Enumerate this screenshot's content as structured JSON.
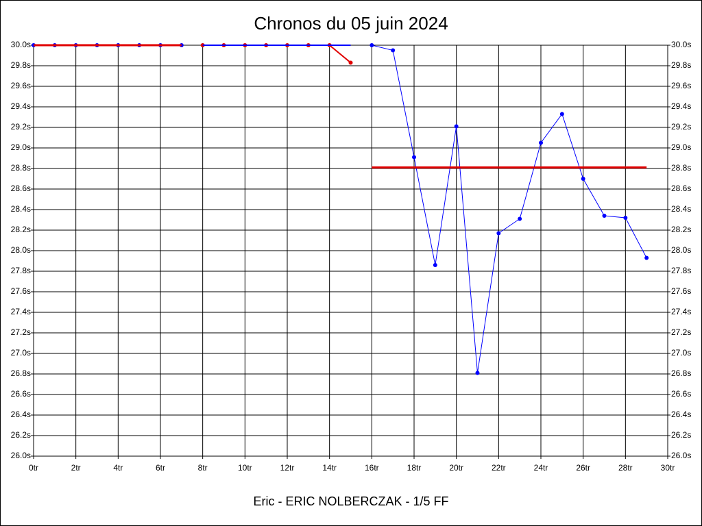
{
  "chart_data": {
    "type": "line",
    "title": "Chronos du 05 juin 2024",
    "subtitle": "Eric - ERIC NOLBERCZAK - 1/5 FF",
    "grid": true,
    "xlim": [
      0,
      30
    ],
    "xticks": [
      {
        "value": 0,
        "label": "0tr"
      },
      {
        "value": 2,
        "label": "2tr"
      },
      {
        "value": 4,
        "label": "4tr"
      },
      {
        "value": 6,
        "label": "6tr"
      },
      {
        "value": 8,
        "label": "8tr"
      },
      {
        "value": 10,
        "label": "10tr"
      },
      {
        "value": 12,
        "label": "12tr"
      },
      {
        "value": 14,
        "label": "14tr"
      },
      {
        "value": 16,
        "label": "16tr"
      },
      {
        "value": 18,
        "label": "18tr"
      },
      {
        "value": 20,
        "label": "20tr"
      },
      {
        "value": 22,
        "label": "22tr"
      },
      {
        "value": 24,
        "label": "24tr"
      },
      {
        "value": 26,
        "label": "26tr"
      },
      {
        "value": 28,
        "label": "28tr"
      },
      {
        "value": 30,
        "label": "30tr"
      }
    ],
    "ylim": [
      26,
      30
    ],
    "yticks": [
      {
        "value": 26,
        "label": "26.0s"
      },
      {
        "value": 26.2,
        "label": "26.2s"
      },
      {
        "value": 26.4,
        "label": "26.4s"
      },
      {
        "value": 26.6,
        "label": "26.6s"
      },
      {
        "value": 26.8,
        "label": "26.8s"
      },
      {
        "value": 27,
        "label": "27.0s"
      },
      {
        "value": 27.2,
        "label": "27.2s"
      },
      {
        "value": 27.4,
        "label": "27.4s"
      },
      {
        "value": 27.6,
        "label": "27.6s"
      },
      {
        "value": 27.8,
        "label": "27.8s"
      },
      {
        "value": 28,
        "label": "28.0s"
      },
      {
        "value": 28.2,
        "label": "28.2s"
      },
      {
        "value": 28.4,
        "label": "28.4s"
      },
      {
        "value": 28.6,
        "label": "28.6s"
      },
      {
        "value": 28.8,
        "label": "28.8s"
      },
      {
        "value": 29,
        "label": "29.0s"
      },
      {
        "value": 29.2,
        "label": "29.2s"
      },
      {
        "value": 29.4,
        "label": "29.4s"
      },
      {
        "value": 29.6,
        "label": "29.6s"
      },
      {
        "value": 29.8,
        "label": "29.8s"
      },
      {
        "value": 30,
        "label": "30.0s"
      }
    ],
    "y2lim": [
      26,
      30
    ],
    "y2ticks": [
      {
        "value": 26,
        "label": "26.0s"
      },
      {
        "value": 26.2,
        "label": "26.2s"
      },
      {
        "value": 26.4,
        "label": "26.4s"
      },
      {
        "value": 26.6,
        "label": "26.6s"
      },
      {
        "value": 26.8,
        "label": "26.8s"
      },
      {
        "value": 27,
        "label": "27.0s"
      },
      {
        "value": 27.2,
        "label": "27.2s"
      },
      {
        "value": 27.4,
        "label": "27.4s"
      },
      {
        "value": 27.6,
        "label": "27.6s"
      },
      {
        "value": 27.8,
        "label": "27.8s"
      },
      {
        "value": 28,
        "label": "28.0s"
      },
      {
        "value": 28.2,
        "label": "28.2s"
      },
      {
        "value": 28.4,
        "label": "28.4s"
      },
      {
        "value": 28.6,
        "label": "28.6s"
      },
      {
        "value": 28.8,
        "label": "28.8s"
      },
      {
        "value": 29,
        "label": "29.0s"
      },
      {
        "value": 29.2,
        "label": "29.2s"
      },
      {
        "value": 29.4,
        "label": "29.4s"
      },
      {
        "value": 29.6,
        "label": "29.6s"
      },
      {
        "value": 29.8,
        "label": "29.8s"
      },
      {
        "value": 30,
        "label": "30.0s"
      }
    ],
    "series": [
      {
        "color": "#0000ff",
        "width": 2,
        "markers": true,
        "x": [
          0,
          1,
          2,
          3,
          4,
          5,
          6,
          7
        ],
        "values": [
          30,
          30,
          30,
          30,
          30,
          30,
          30,
          30
        ]
      },
      {
        "color": "#e00000",
        "width": 3,
        "markers": false,
        "x": [
          0,
          1,
          2,
          3,
          4,
          5,
          6,
          7
        ],
        "values": [
          30,
          30,
          30,
          30,
          30,
          30,
          30,
          30
        ]
      },
      {
        "color": "#e00000",
        "width": 2,
        "markers": true,
        "x": [
          8,
          9,
          10,
          11,
          12,
          13,
          14,
          15
        ],
        "values": [
          30,
          30,
          30,
          30,
          30,
          30,
          30,
          29.83
        ]
      },
      {
        "color": "#0000ff",
        "width": 2,
        "markers": false,
        "x": [
          8,
          9,
          10,
          11,
          12,
          13,
          14,
          15
        ],
        "values": [
          30,
          30,
          30,
          30,
          30,
          30,
          30,
          30
        ]
      },
      {
        "color": "#0000ff",
        "width": 1,
        "markers": true,
        "x": [
          16,
          17,
          18,
          19,
          20,
          21,
          22,
          23,
          24,
          25,
          26,
          27,
          28,
          29
        ],
        "values": [
          30,
          29.95,
          28.91,
          27.86,
          29.21,
          26.81,
          28.17,
          28.31,
          29.05,
          29.33,
          28.7,
          28.34,
          28.32,
          27.93
        ]
      },
      {
        "color": "#e00000",
        "width": 3,
        "markers": false,
        "x": [
          16,
          29
        ],
        "values": [
          28.81,
          28.81
        ]
      }
    ]
  }
}
